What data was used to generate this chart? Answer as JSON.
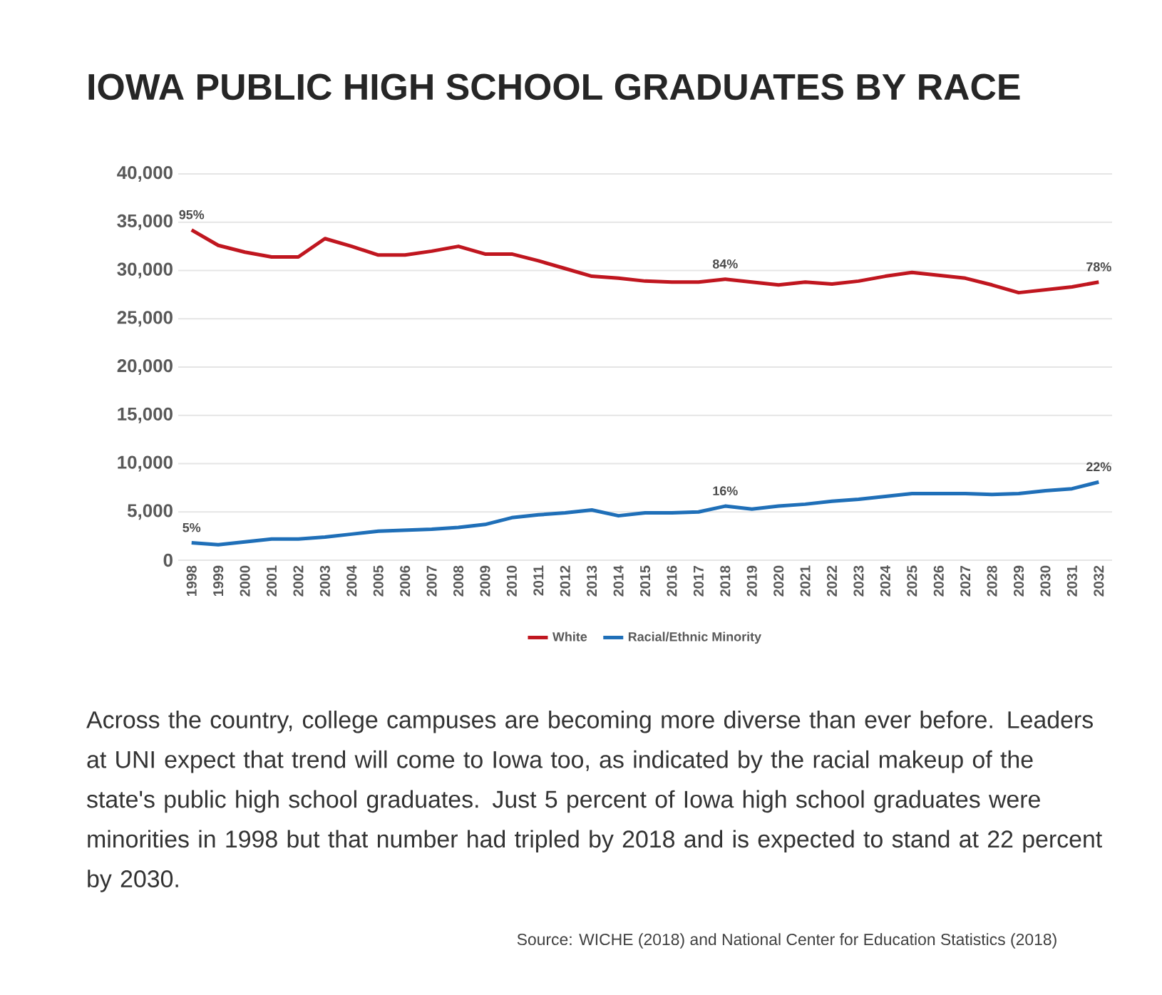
{
  "chart_data": {
    "type": "line",
    "title": "IOWA PUBLIC HIGH SCHOOL GRADUATES BY RACE",
    "categories": [
      "1998",
      "1999",
      "2000",
      "2001",
      "2002",
      "2003",
      "2004",
      "2005",
      "2006",
      "2007",
      "2008",
      "2009",
      "2010",
      "2011",
      "2012",
      "2013",
      "2014",
      "2015",
      "2016",
      "2017",
      "2018",
      "2019",
      "2020",
      "2021",
      "2022",
      "2023",
      "2024",
      "2025",
      "2026",
      "2027",
      "2028",
      "2029",
      "2030",
      "2031",
      "2032"
    ],
    "series": [
      {
        "name": "White",
        "color": "#c0161f",
        "values": [
          34200,
          32600,
          31900,
          31400,
          31400,
          33300,
          32500,
          31600,
          31600,
          32000,
          32500,
          31700,
          31700,
          31000,
          30200,
          29400,
          29200,
          28900,
          28800,
          28800,
          29100,
          28800,
          28500,
          28800,
          28600,
          28900,
          29400,
          29800,
          29500,
          29200,
          28500,
          27700,
          28000,
          28300,
          28800
        ]
      },
      {
        "name": "Racial/Ethnic Minority",
        "color": "#1f6fb8",
        "values": [
          1800,
          1600,
          1900,
          2200,
          2200,
          2400,
          2700,
          3000,
          3100,
          3200,
          3400,
          3700,
          4400,
          4700,
          4900,
          5200,
          4600,
          4900,
          4900,
          5000,
          5600,
          5300,
          5600,
          5800,
          6100,
          6300,
          6600,
          6900,
          6900,
          6900,
          6800,
          6900,
          7200,
          7400,
          8100
        ]
      }
    ],
    "ylim": [
      0,
      40000
    ],
    "yticks": [
      0,
      {
        "value": 5000,
        "label": "5,000"
      },
      {
        "value": 10000,
        "label": "10,000"
      },
      {
        "value": 15000,
        "label": "15,000"
      },
      {
        "value": 20000,
        "label": "20,000"
      },
      {
        "value": 25000,
        "label": "25,000"
      },
      {
        "value": 30000,
        "label": "30,000"
      },
      {
        "value": 35000,
        "label": "35,000"
      },
      {
        "value": 40000,
        "label": "40,000"
      }
    ],
    "grid": "y",
    "legend": "bottom",
    "marker": "none",
    "line_style": "solid",
    "annotations": [
      {
        "text": "95%",
        "x": "1998",
        "y": 34200
      },
      {
        "text": "84%",
        "x": "2018",
        "y": 29100
      },
      {
        "text": "78%",
        "x": "2032",
        "y": 28800
      },
      {
        "text": "5%",
        "x": "1998",
        "y": 1800
      },
      {
        "text": "16%",
        "x": "2018",
        "y": 5600
      },
      {
        "text": "22%",
        "x": "2032",
        "y": 8100
      },
      "Across the country, college campuses are becoming more diverse than ever before. Leaders at UNI expect that trend will come to Iowa too, as indicated by the racial makeup of the state's public high school graduates. Just 5 percent of Iowa high school graduates were minorities in 1998 but that number had tripled by 2018 and is expected to stand at 22 percent by 2030.",
      "Source: WICHE (2018) and National Center for Education Statistics (2018)"
    ]
  }
}
